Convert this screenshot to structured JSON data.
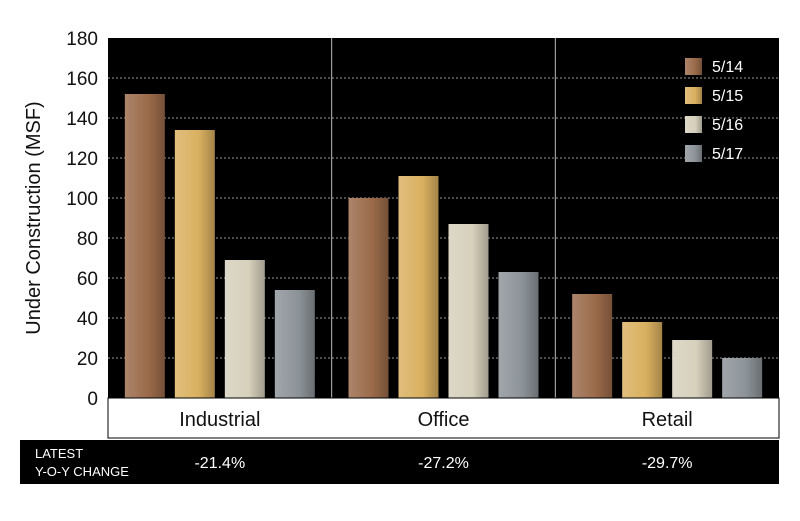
{
  "chart_data": {
    "type": "bar",
    "title": "",
    "xlabel": "",
    "ylabel": "Under Construction (MSF)",
    "ylim": [
      0,
      180
    ],
    "yticks": [
      0,
      20,
      40,
      60,
      80,
      100,
      120,
      140,
      160,
      180
    ],
    "grid": true,
    "legend_position": "top-right",
    "categories": [
      "Industrial",
      "Office",
      "Retail"
    ],
    "series": [
      {
        "name": "5/14",
        "values": [
          152,
          100,
          52
        ],
        "color": "#9a6a4a"
      },
      {
        "name": "5/15",
        "values": [
          134,
          111,
          38
        ],
        "color": "#d9b060"
      },
      {
        "name": "5/16",
        "values": [
          69,
          87,
          29
        ],
        "color": "#d6d0bc"
      },
      {
        "name": "5/17",
        "values": [
          54,
          63,
          20
        ],
        "color": "#8c9398"
      }
    ]
  },
  "change_row": {
    "label_line1": "LATEST",
    "label_line2": "Y-O-Y CHANGE",
    "values": [
      "-21.4%",
      "-27.2%",
      "-29.7%"
    ]
  },
  "colors": {
    "plot_background": "#000000",
    "gridline": "#9a9a9a",
    "separator": "#bbbbbb"
  }
}
